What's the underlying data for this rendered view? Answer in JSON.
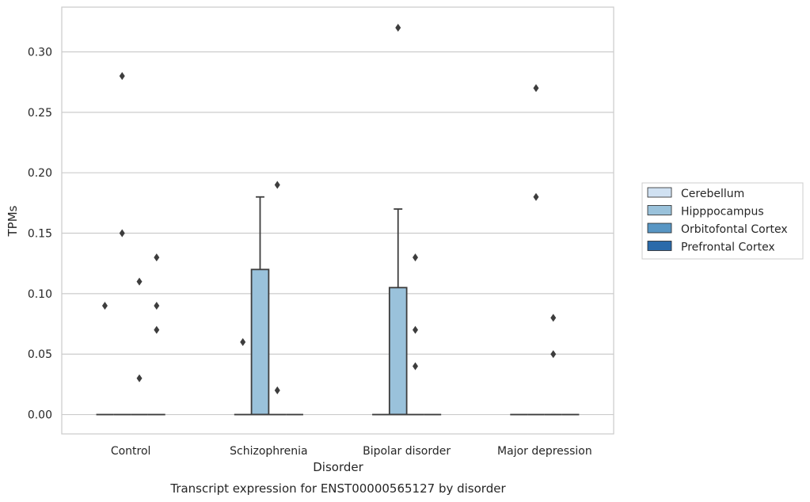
{
  "chart_data": {
    "type": "box",
    "title": "",
    "caption": "Transcript expression for ENST00000565127 by disorder",
    "xlabel": "Disorder",
    "ylabel": "TPMs",
    "ylim": [
      -0.016,
      0.337
    ],
    "yticks": [
      "0.00",
      "0.05",
      "0.10",
      "0.15",
      "0.20",
      "0.25",
      "0.30"
    ],
    "ytick_values": [
      0,
      0.05,
      0.1,
      0.15,
      0.2,
      0.25,
      0.3
    ],
    "grid": "horizontal",
    "legend_position": "right",
    "categories": [
      "Control",
      "Schizophrenia",
      "Bipolar disorder",
      "Major depression"
    ],
    "series": [
      {
        "name": "Cerebellum",
        "color": "#d0e1f2"
      },
      {
        "name": "Hipppocampus",
        "color": "#9ac2db"
      },
      {
        "name": "Orbitofontal Cortex",
        "color": "#5896c4"
      },
      {
        "name": "Prefrontal Cortex",
        "color": "#2a6aaa"
      }
    ],
    "boxes": [
      {
        "category": 0,
        "series": 0,
        "q1": 0,
        "median": 0,
        "q3": 0,
        "whisker_low": 0,
        "whisker_high": 0,
        "outliers": [
          0.09
        ]
      },
      {
        "category": 0,
        "series": 1,
        "q1": 0,
        "median": 0,
        "q3": 0,
        "whisker_low": 0,
        "whisker_high": 0,
        "outliers": [
          0.28,
          0.15
        ]
      },
      {
        "category": 0,
        "series": 2,
        "q1": 0,
        "median": 0,
        "q3": 0,
        "whisker_low": 0,
        "whisker_high": 0,
        "outliers": [
          0.11,
          0.03
        ]
      },
      {
        "category": 0,
        "series": 3,
        "q1": 0,
        "median": 0,
        "q3": 0,
        "whisker_low": 0,
        "whisker_high": 0,
        "outliers": [
          0.13,
          0.09,
          0.07
        ]
      },
      {
        "category": 1,
        "series": 0,
        "q1": 0,
        "median": 0,
        "q3": 0,
        "whisker_low": 0,
        "whisker_high": 0,
        "outliers": [
          0.06
        ]
      },
      {
        "category": 1,
        "series": 1,
        "q1": 0,
        "median": 0,
        "q3": 0.12,
        "whisker_low": 0,
        "whisker_high": 0.18,
        "outliers": []
      },
      {
        "category": 1,
        "series": 2,
        "q1": 0,
        "median": 0,
        "q3": 0,
        "whisker_low": 0,
        "whisker_high": 0,
        "outliers": [
          0.19,
          0.02
        ]
      },
      {
        "category": 1,
        "series": 3,
        "q1": 0,
        "median": 0,
        "q3": 0,
        "whisker_low": 0,
        "whisker_high": 0,
        "outliers": []
      },
      {
        "category": 2,
        "series": 0,
        "q1": 0,
        "median": 0,
        "q3": 0,
        "whisker_low": 0,
        "whisker_high": 0,
        "outliers": []
      },
      {
        "category": 2,
        "series": 1,
        "q1": 0,
        "median": 0,
        "q3": 0.105,
        "whisker_low": 0,
        "whisker_high": 0.17,
        "outliers": [
          0.32
        ]
      },
      {
        "category": 2,
        "series": 2,
        "q1": 0,
        "median": 0,
        "q3": 0,
        "whisker_low": 0,
        "whisker_high": 0,
        "outliers": [
          0.13,
          0.07,
          0.04
        ]
      },
      {
        "category": 2,
        "series": 3,
        "q1": 0,
        "median": 0,
        "q3": 0,
        "whisker_low": 0,
        "whisker_high": 0,
        "outliers": []
      },
      {
        "category": 3,
        "series": 0,
        "q1": 0,
        "median": 0,
        "q3": 0,
        "whisker_low": 0,
        "whisker_high": 0,
        "outliers": []
      },
      {
        "category": 3,
        "series": 1,
        "q1": 0,
        "median": 0,
        "q3": 0,
        "whisker_low": 0,
        "whisker_high": 0,
        "outliers": [
          0.27,
          0.18
        ]
      },
      {
        "category": 3,
        "series": 2,
        "q1": 0,
        "median": 0,
        "q3": 0,
        "whisker_low": 0,
        "whisker_high": 0,
        "outliers": [
          0.08,
          0.05
        ]
      },
      {
        "category": 3,
        "series": 3,
        "q1": 0,
        "median": 0,
        "q3": 0,
        "whisker_low": 0,
        "whisker_high": 0,
        "outliers": []
      }
    ]
  }
}
